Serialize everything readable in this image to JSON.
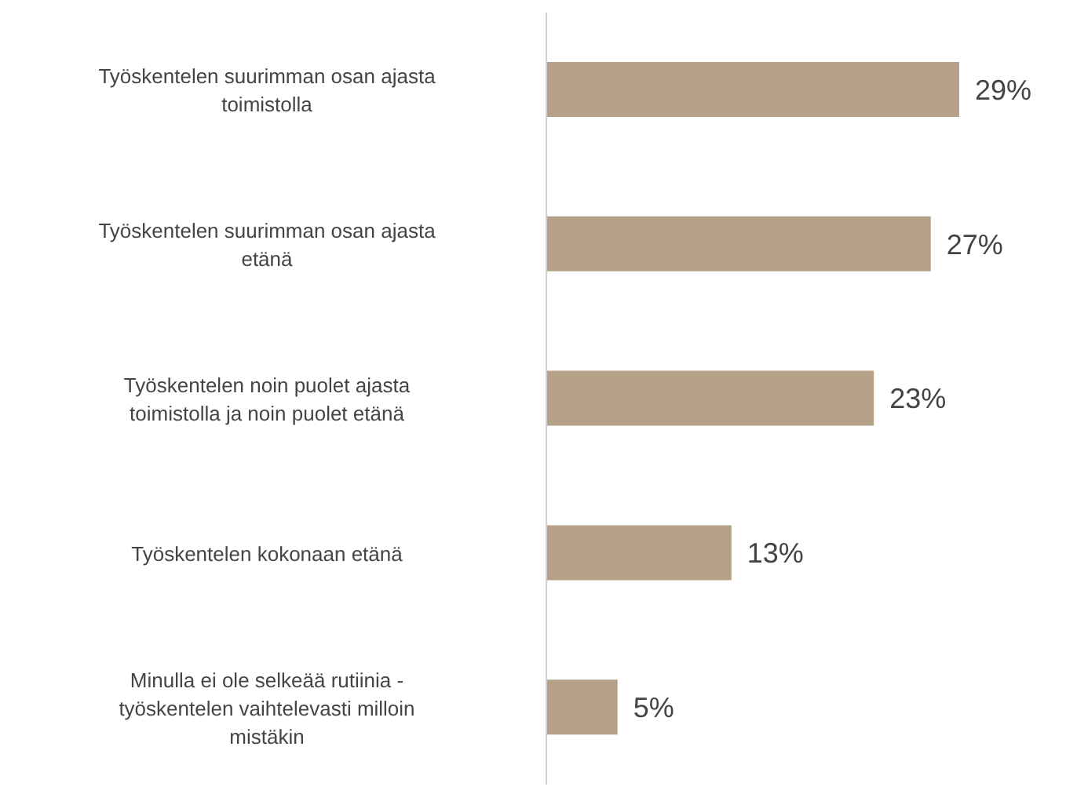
{
  "chart_data": {
    "type": "bar",
    "orientation": "horizontal",
    "categories": [
      "Työskentelen suurimman osan ajasta toimistolla",
      "Työskentelen suurimman osan ajasta etänä",
      "Työskentelen noin puolet ajasta toimistolla ja noin puolet etänä",
      "Työskentelen kokonaan etänä",
      "Minulla ei ole selkeää rutiinia - työskentelen vaihtelevasti milloin mistäkin"
    ],
    "values": [
      29,
      27,
      23,
      13,
      5
    ],
    "value_labels": [
      "29%",
      "27%",
      "23%",
      "13%",
      "5%"
    ],
    "color": "#b5a088"
  }
}
